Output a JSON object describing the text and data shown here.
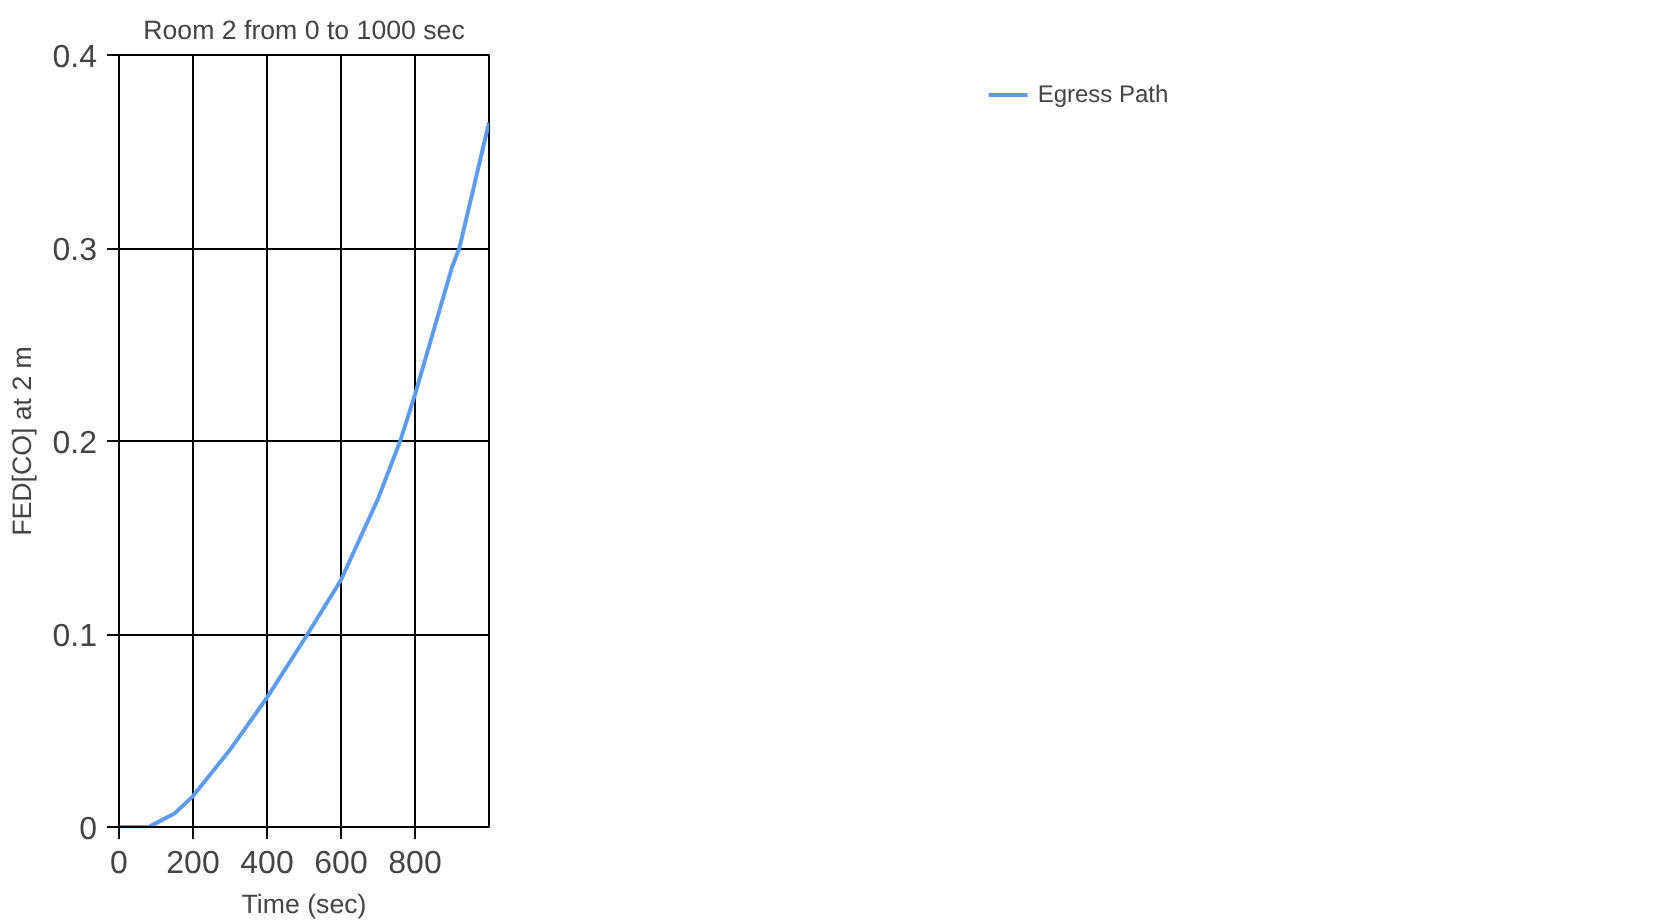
{
  "chart_data": {
    "type": "line",
    "title": "Room 2 from 0 to 1000 sec",
    "xlabel": "Time (sec)",
    "ylabel": "FED[CO] at 2 m",
    "x": [
      0,
      80,
      100,
      150,
      200,
      300,
      400,
      500,
      600,
      700,
      760,
      800,
      900,
      920,
      1000
    ],
    "series": [
      {
        "name": "Egress Path",
        "color": "#5b9bf0",
        "values": [
          0,
          0,
          0.002,
          0.007,
          0.016,
          0.04,
          0.067,
          0.097,
          0.128,
          0.17,
          0.2,
          0.224,
          0.29,
          0.3,
          0.365
        ]
      }
    ],
    "xlim": [
      0,
      1000
    ],
    "xticks": [
      0,
      200,
      400,
      600,
      800
    ],
    "ylim": [
      0,
      0.4
    ],
    "yticks": [
      0,
      0.1,
      0.2,
      0.3,
      0.4
    ],
    "grid": true,
    "legend": "top right",
    "marker": "none",
    "line_style": "solid"
  }
}
